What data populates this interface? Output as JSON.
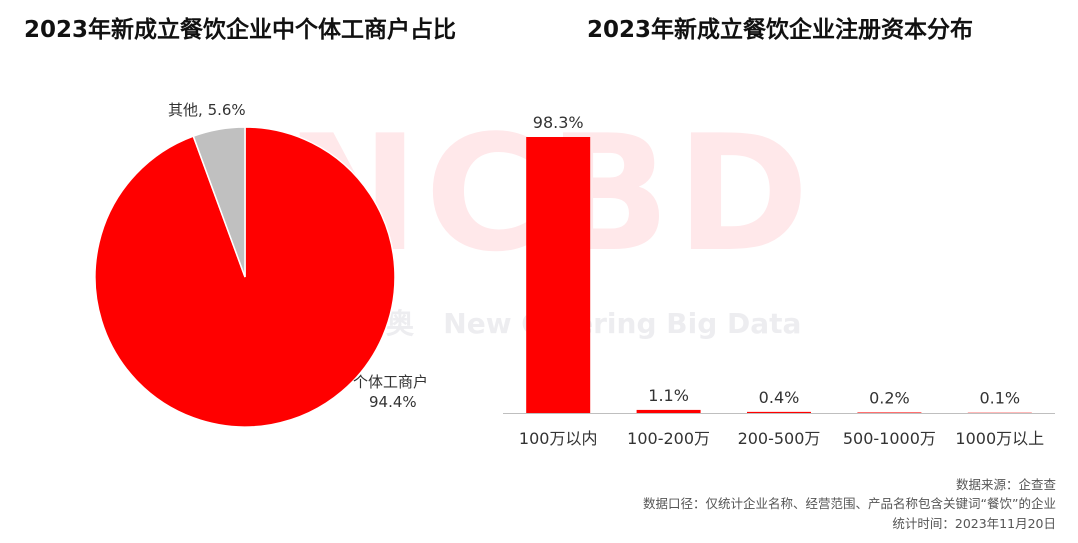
{
  "titles": {
    "left": "2023年新成立餐饮企业中个体工商户占比",
    "right": "2023年新成立餐饮企业注册资本分布"
  },
  "watermark": {
    "logo": "NCBD",
    "text": "New Catering Big Data",
    "logo_char": "奥"
  },
  "chart_data": [
    {
      "type": "pie",
      "title": "2023年新成立餐饮企业中个体工商户占比",
      "slices": [
        {
          "label": "个体工商户",
          "value": 94.4,
          "display": "94.4%",
          "color": "#ff0000"
        },
        {
          "label": "其他",
          "value": 5.6,
          "display": "5.6%",
          "color": "#c0c0c0"
        }
      ]
    },
    {
      "type": "bar",
      "title": "2023年新成立餐饮企业注册资本分布",
      "categories": [
        "100万以内",
        "100-200万",
        "200-500万",
        "500-1000万",
        "1000万以上"
      ],
      "values": [
        98.3,
        1.1,
        0.4,
        0.2,
        0.1
      ],
      "labels": [
        "98.3%",
        "1.1%",
        "0.4%",
        "0.2%",
        "0.1%"
      ],
      "ylim": [
        0,
        100
      ],
      "color": "#ff0000",
      "grid": false
    }
  ],
  "footer": {
    "source": "数据来源：企查查",
    "scope": "数据口径：仅统计企业名称、经营范围、产品名称包含关键词“餐饮”的企业",
    "time": "统计时间：2023年11月20日"
  }
}
